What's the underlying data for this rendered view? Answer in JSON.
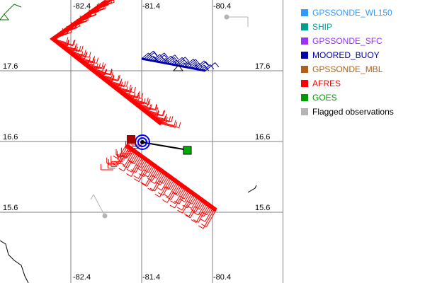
{
  "map": {
    "lon_ticks": [
      "-82.4",
      "-81.4",
      "-80.4"
    ],
    "lat_ticks": [
      "17.6",
      "16.6",
      "15.6"
    ],
    "grid_color": "#808080"
  },
  "legend": [
    {
      "label": "GPSSONDE_WL150",
      "color": "#3399ff"
    },
    {
      "label": "SHIP",
      "color": "#009e8e"
    },
    {
      "label": "GPSSONDE_SFC",
      "color": "#9933ff"
    },
    {
      "label": "MOORED_BUOY",
      "color": "#0000aa"
    },
    {
      "label": "GPSSONDE_MBL",
      "color": "#b0601a"
    },
    {
      "label": "AFRES",
      "color": "#ff0000"
    },
    {
      "label": "GOES",
      "color": "#009900"
    },
    {
      "label": "Flagged observations",
      "color": "#b4b4b4",
      "text_color": "#000000"
    }
  ]
}
